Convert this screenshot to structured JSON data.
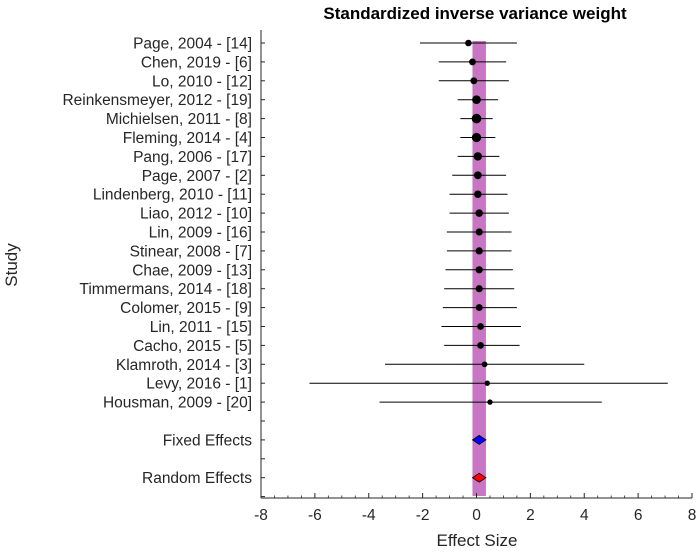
{
  "chart_data": {
    "type": "forest",
    "title": "Standardized inverse variance weight",
    "xlabel": "Effect Size",
    "ylabel": "Study",
    "xlim": [
      -8,
      8
    ],
    "xticks": [
      -8,
      -6,
      -4,
      -2,
      0,
      2,
      4,
      6,
      8
    ],
    "xtick_labels": [
      "-8",
      "-6",
      "-4",
      "-2",
      "0",
      "2",
      "4",
      "6",
      "8"
    ],
    "studies": [
      {
        "label": "Page, 2004 - [14]",
        "effect": -0.3,
        "ci_low": -2.1,
        "ci_high": 1.5,
        "weight": 0.5
      },
      {
        "label": "Chen, 2019 - [6]",
        "effect": -0.15,
        "ci_low": -1.4,
        "ci_high": 1.1,
        "weight": 0.55
      },
      {
        "label": "Lo, 2010 - [12]",
        "effect": -0.1,
        "ci_low": -1.4,
        "ci_high": 1.2,
        "weight": 0.55
      },
      {
        "label": "Reinkensmeyer, 2012 - [19]",
        "effect": 0.0,
        "ci_low": -0.7,
        "ci_high": 0.8,
        "weight": 0.85
      },
      {
        "label": "Michielsen, 2011 - [8]",
        "effect": 0.0,
        "ci_low": -0.6,
        "ci_high": 0.6,
        "weight": 1.0
      },
      {
        "label": "Fleming, 2014 - [4]",
        "effect": 0.0,
        "ci_low": -0.6,
        "ci_high": 0.7,
        "weight": 0.95
      },
      {
        "label": "Pang, 2006 - [17]",
        "effect": 0.05,
        "ci_low": -0.7,
        "ci_high": 0.85,
        "weight": 0.8
      },
      {
        "label": "Page, 2007 - [2]",
        "effect": 0.05,
        "ci_low": -0.9,
        "ci_high": 1.1,
        "weight": 0.7
      },
      {
        "label": "Lindenberg, 2010 - [11]",
        "effect": 0.05,
        "ci_low": -1.0,
        "ci_high": 1.15,
        "weight": 0.65
      },
      {
        "label": "Liao, 2012 - [10]",
        "effect": 0.1,
        "ci_low": -1.0,
        "ci_high": 1.2,
        "weight": 0.65
      },
      {
        "label": "Lin, 2009 - [16]",
        "effect": 0.1,
        "ci_low": -1.1,
        "ci_high": 1.3,
        "weight": 0.6
      },
      {
        "label": "Stinear, 2008 - [7]",
        "effect": 0.1,
        "ci_low": -1.1,
        "ci_high": 1.3,
        "weight": 0.6
      },
      {
        "label": "Chae, 2009 - [13]",
        "effect": 0.1,
        "ci_low": -1.15,
        "ci_high": 1.35,
        "weight": 0.6
      },
      {
        "label": "Timmermans, 2014 - [18]",
        "effect": 0.1,
        "ci_low": -1.2,
        "ci_high": 1.4,
        "weight": 0.58
      },
      {
        "label": "Colomer, 2015 - [9]",
        "effect": 0.1,
        "ci_low": -1.25,
        "ci_high": 1.5,
        "weight": 0.55
      },
      {
        "label": "Lin, 2011 - [15]",
        "effect": 0.15,
        "ci_low": -1.3,
        "ci_high": 1.65,
        "weight": 0.52
      },
      {
        "label": "Cacho, 2015 - [5]",
        "effect": 0.15,
        "ci_low": -1.2,
        "ci_high": 1.6,
        "weight": 0.52
      },
      {
        "label": "Klamroth, 2014 - [3]",
        "effect": 0.3,
        "ci_low": -3.4,
        "ci_high": 4.0,
        "weight": 0.35
      },
      {
        "label": "Levy, 2016 - [1]",
        "effect": 0.4,
        "ci_low": -6.2,
        "ci_high": 7.1,
        "weight": 0.3
      },
      {
        "label": "Housman, 2009 - [20]",
        "effect": 0.5,
        "ci_low": -3.6,
        "ci_high": 4.65,
        "weight": 0.3
      }
    ],
    "summary": [
      {
        "label": "Fixed Effects",
        "effect": 0.1,
        "ci_low": -0.15,
        "ci_high": 0.35,
        "color": "#0000ff"
      },
      {
        "label": "Random Effects",
        "effect": 0.1,
        "ci_low": -0.15,
        "ci_high": 0.35,
        "color": "#ff0000"
      }
    ],
    "band": {
      "low": -0.15,
      "high": 0.35,
      "color": "#c875c4"
    }
  }
}
